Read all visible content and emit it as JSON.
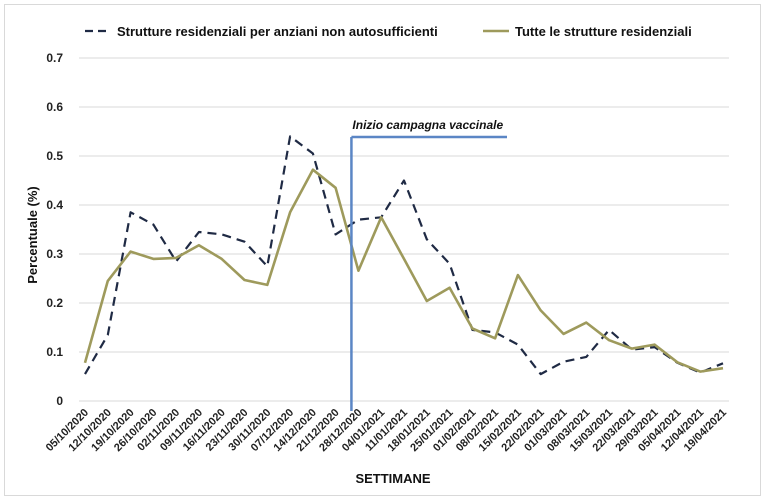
{
  "chart_data": {
    "type": "line",
    "title": "",
    "xlabel": "SETTIMANE",
    "ylabel": "Percentuale (%)",
    "ylim": [
      0,
      0.7
    ],
    "yticks": [
      "0",
      "0.1",
      "0.2",
      "0.3",
      "0.4",
      "0.5",
      "0.6",
      "0.7"
    ],
    "grid": "horizontal",
    "legend_position": "top",
    "categories": [
      "05/10/2020",
      "12/10/2020",
      "19/10/2020",
      "26/10/2020",
      "02/11/2020",
      "09/11/2020",
      "16/11/2020",
      "23/11/2020",
      "30/11/2020",
      "07/12/2020",
      "14/12/2020",
      "21/12/2020",
      "28/12/2020",
      "04/01/2021",
      "11/01/2021",
      "18/01/2021",
      "25/01/2021",
      "01/02/2021",
      "08/02/2021",
      "15/02/2021",
      "22/02/2021",
      "01/03/2021",
      "08/03/2021",
      "15/03/2021",
      "22/03/2021",
      "29/03/2021",
      "05/04/2021",
      "12/04/2021",
      "19/04/2021"
    ],
    "series": [
      {
        "name": "Strutture residenziali per anziani non autosufficienti",
        "color": "#1f2a44",
        "style": "dashed",
        "values": [
          0.055,
          0.135,
          0.385,
          0.36,
          0.285,
          0.345,
          0.34,
          0.325,
          0.275,
          0.54,
          0.505,
          0.34,
          0.37,
          0.375,
          0.45,
          0.33,
          0.28,
          0.145,
          0.14,
          0.115,
          0.055,
          0.08,
          0.09,
          0.145,
          0.105,
          0.11,
          0.078,
          0.058,
          0.077
        ]
      },
      {
        "name": "Tutte le strutture residenziali",
        "color": "#9e9a5c",
        "style": "solid",
        "values": [
          0.078,
          0.245,
          0.305,
          0.29,
          0.292,
          0.318,
          0.29,
          0.247,
          0.237,
          0.385,
          0.472,
          0.435,
          0.266,
          0.375,
          0.29,
          0.204,
          0.231,
          0.148,
          0.128,
          0.257,
          0.185,
          0.137,
          0.16,
          0.124,
          0.107,
          0.115,
          0.079,
          0.06,
          0.067
        ]
      }
    ],
    "annotations": [
      {
        "text": "Inizio campagna vaccinale",
        "at_category": "28/12/2020",
        "color": "#5b86c5"
      }
    ]
  }
}
